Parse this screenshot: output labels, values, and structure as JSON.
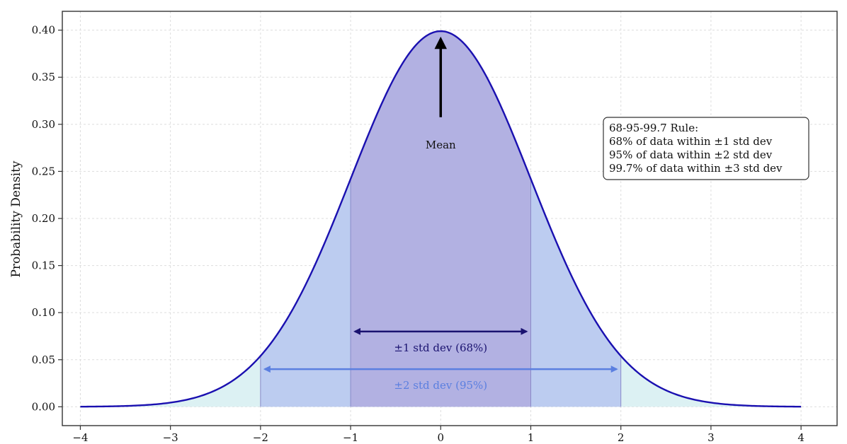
{
  "chart_data": {
    "type": "line",
    "title": "",
    "xlabel": "",
    "ylabel": "Probability Density",
    "xlim": [
      -4.2,
      4.4
    ],
    "ylim": [
      -0.02,
      0.42
    ],
    "x_ticks": [
      -4,
      -3,
      -2,
      -1,
      0,
      1,
      2,
      3,
      4
    ],
    "x_tick_labels": [
      "−4",
      "−3",
      "−2",
      "−1",
      "0",
      "1",
      "2",
      "3",
      "4"
    ],
    "y_ticks": [
      0.0,
      0.05,
      0.1,
      0.15,
      0.2,
      0.25,
      0.3,
      0.35,
      0.4
    ],
    "y_tick_labels": [
      "0.00",
      "0.05",
      "0.10",
      "0.15",
      "0.20",
      "0.25",
      "0.30",
      "0.35",
      "0.40"
    ],
    "grid": true,
    "series": [
      {
        "name": "",
        "distribution": "normal",
        "mean": 0,
        "std": 1,
        "x_range": [
          -4,
          4
        ],
        "color": "#1a10b0"
      }
    ],
    "shaded_regions": [
      {
        "range": [
          -4,
          4
        ],
        "color": "#d8f0f2"
      },
      {
        "range": [
          -2,
          2
        ],
        "color": "#b8c8f0"
      },
      {
        "range": [
          -1,
          1
        ],
        "color": "#b0aee0"
      }
    ],
    "annotations": {
      "mean": {
        "label": "Mean",
        "x": 0,
        "arrow_from_y": 0.27,
        "arrow_to_y": 0.395
      },
      "one_std": {
        "label": "±1 std dev (68%)",
        "range": [
          -1,
          1
        ],
        "y": 0.08,
        "color": "#1a1270"
      },
      "two_std": {
        "label": "±2 std dev (95%)",
        "range": [
          -2,
          2
        ],
        "y": 0.04,
        "color": "#5b7fe0"
      }
    },
    "info_box": {
      "position": "top-right",
      "lines": [
        "68-95-99.7 Rule:",
        "68% of data within ±1 std dev",
        "95% of data within ±2 std dev",
        "99.7% of data within ±3 std dev"
      ]
    },
    "colors": {
      "curve": "#1a10b0",
      "axis": "#333333",
      "grid": "#dddddd",
      "box_border": "#333333"
    }
  }
}
